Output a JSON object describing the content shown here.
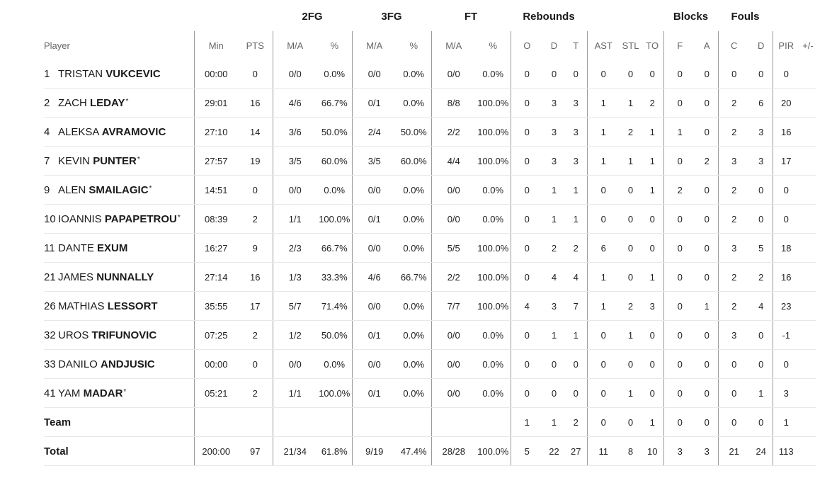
{
  "groups": {
    "two_fg": "2FG",
    "three_fg": "3FG",
    "ft": "FT",
    "rebounds": "Rebounds",
    "blocks": "Blocks",
    "fouls": "Fouls"
  },
  "columns": {
    "player": "Player",
    "min": "Min",
    "pts": "PTS",
    "fg2_ma": "M/A",
    "fg2_pct": "%",
    "fg3_ma": "M/A",
    "fg3_pct": "%",
    "ft_ma": "M/A",
    "ft_pct": "%",
    "reb_o": "O",
    "reb_d": "D",
    "reb_t": "T",
    "ast": "AST",
    "stl": "STL",
    "to": "TO",
    "blk_f": "F",
    "blk_a": "A",
    "foul_c": "C",
    "foul_d": "D",
    "pir": "PIR",
    "plusminus": "+/-"
  },
  "players": [
    {
      "num": "1",
      "first": "TRISTAN",
      "last": "VUKCEVIC",
      "star": "",
      "min": "00:00",
      "pts": "0",
      "fg2_ma": "0/0",
      "fg2_pct": "0.0%",
      "fg3_ma": "0/0",
      "fg3_pct": "0.0%",
      "ft_ma": "0/0",
      "ft_pct": "0.0%",
      "reb_o": "0",
      "reb_d": "0",
      "reb_t": "0",
      "ast": "0",
      "stl": "0",
      "to": "0",
      "blk_f": "0",
      "blk_a": "0",
      "foul_c": "0",
      "foul_d": "0",
      "pir": "0",
      "plusminus": ""
    },
    {
      "num": "2",
      "first": "ZACH",
      "last": "LEDAY",
      "star": "*",
      "min": "29:01",
      "pts": "16",
      "fg2_ma": "4/6",
      "fg2_pct": "66.7%",
      "fg3_ma": "0/1",
      "fg3_pct": "0.0%",
      "ft_ma": "8/8",
      "ft_pct": "100.0%",
      "reb_o": "0",
      "reb_d": "3",
      "reb_t": "3",
      "ast": "1",
      "stl": "1",
      "to": "2",
      "blk_f": "0",
      "blk_a": "0",
      "foul_c": "2",
      "foul_d": "6",
      "pir": "20",
      "plusminus": ""
    },
    {
      "num": "4",
      "first": "ALEKSA",
      "last": "AVRAMOVIC",
      "star": "",
      "min": "27:10",
      "pts": "14",
      "fg2_ma": "3/6",
      "fg2_pct": "50.0%",
      "fg3_ma": "2/4",
      "fg3_pct": "50.0%",
      "ft_ma": "2/2",
      "ft_pct": "100.0%",
      "reb_o": "0",
      "reb_d": "3",
      "reb_t": "3",
      "ast": "1",
      "stl": "2",
      "to": "1",
      "blk_f": "1",
      "blk_a": "0",
      "foul_c": "2",
      "foul_d": "3",
      "pir": "16",
      "plusminus": ""
    },
    {
      "num": "7",
      "first": "KEVIN",
      "last": "PUNTER",
      "star": "*",
      "min": "27:57",
      "pts": "19",
      "fg2_ma": "3/5",
      "fg2_pct": "60.0%",
      "fg3_ma": "3/5",
      "fg3_pct": "60.0%",
      "ft_ma": "4/4",
      "ft_pct": "100.0%",
      "reb_o": "0",
      "reb_d": "3",
      "reb_t": "3",
      "ast": "1",
      "stl": "1",
      "to": "1",
      "blk_f": "0",
      "blk_a": "2",
      "foul_c": "3",
      "foul_d": "3",
      "pir": "17",
      "plusminus": ""
    },
    {
      "num": "9",
      "first": "ALEN",
      "last": "SMAILAGIC",
      "star": "*",
      "min": "14:51",
      "pts": "0",
      "fg2_ma": "0/0",
      "fg2_pct": "0.0%",
      "fg3_ma": "0/0",
      "fg3_pct": "0.0%",
      "ft_ma": "0/0",
      "ft_pct": "0.0%",
      "reb_o": "0",
      "reb_d": "1",
      "reb_t": "1",
      "ast": "0",
      "stl": "0",
      "to": "1",
      "blk_f": "2",
      "blk_a": "0",
      "foul_c": "2",
      "foul_d": "0",
      "pir": "0",
      "plusminus": ""
    },
    {
      "num": "10",
      "first": "IOANNIS",
      "last": "PAPAPETROU",
      "star": "*",
      "min": "08:39",
      "pts": "2",
      "fg2_ma": "1/1",
      "fg2_pct": "100.0%",
      "fg3_ma": "0/1",
      "fg3_pct": "0.0%",
      "ft_ma": "0/0",
      "ft_pct": "0.0%",
      "reb_o": "0",
      "reb_d": "1",
      "reb_t": "1",
      "ast": "0",
      "stl": "0",
      "to": "0",
      "blk_f": "0",
      "blk_a": "0",
      "foul_c": "2",
      "foul_d": "0",
      "pir": "0",
      "plusminus": ""
    },
    {
      "num": "11",
      "first": "DANTE",
      "last": "EXUM",
      "star": "",
      "min": "16:27",
      "pts": "9",
      "fg2_ma": "2/3",
      "fg2_pct": "66.7%",
      "fg3_ma": "0/0",
      "fg3_pct": "0.0%",
      "ft_ma": "5/5",
      "ft_pct": "100.0%",
      "reb_o": "0",
      "reb_d": "2",
      "reb_t": "2",
      "ast": "6",
      "stl": "0",
      "to": "0",
      "blk_f": "0",
      "blk_a": "0",
      "foul_c": "3",
      "foul_d": "5",
      "pir": "18",
      "plusminus": ""
    },
    {
      "num": "21",
      "first": "JAMES",
      "last": "NUNNALLY",
      "star": "",
      "min": "27:14",
      "pts": "16",
      "fg2_ma": "1/3",
      "fg2_pct": "33.3%",
      "fg3_ma": "4/6",
      "fg3_pct": "66.7%",
      "ft_ma": "2/2",
      "ft_pct": "100.0%",
      "reb_o": "0",
      "reb_d": "4",
      "reb_t": "4",
      "ast": "1",
      "stl": "0",
      "to": "1",
      "blk_f": "0",
      "blk_a": "0",
      "foul_c": "2",
      "foul_d": "2",
      "pir": "16",
      "plusminus": ""
    },
    {
      "num": "26",
      "first": "MATHIAS",
      "last": "LESSORT",
      "star": "",
      "min": "35:55",
      "pts": "17",
      "fg2_ma": "5/7",
      "fg2_pct": "71.4%",
      "fg3_ma": "0/0",
      "fg3_pct": "0.0%",
      "ft_ma": "7/7",
      "ft_pct": "100.0%",
      "reb_o": "4",
      "reb_d": "3",
      "reb_t": "7",
      "ast": "1",
      "stl": "2",
      "to": "3",
      "blk_f": "0",
      "blk_a": "1",
      "foul_c": "2",
      "foul_d": "4",
      "pir": "23",
      "plusminus": ""
    },
    {
      "num": "32",
      "first": "UROS",
      "last": "TRIFUNOVIC",
      "star": "",
      "min": "07:25",
      "pts": "2",
      "fg2_ma": "1/2",
      "fg2_pct": "50.0%",
      "fg3_ma": "0/1",
      "fg3_pct": "0.0%",
      "ft_ma": "0/0",
      "ft_pct": "0.0%",
      "reb_o": "0",
      "reb_d": "1",
      "reb_t": "1",
      "ast": "0",
      "stl": "1",
      "to": "0",
      "blk_f": "0",
      "blk_a": "0",
      "foul_c": "3",
      "foul_d": "0",
      "pir": "-1",
      "plusminus": ""
    },
    {
      "num": "33",
      "first": "DANILO",
      "last": "ANDJUSIC",
      "star": "",
      "min": "00:00",
      "pts": "0",
      "fg2_ma": "0/0",
      "fg2_pct": "0.0%",
      "fg3_ma": "0/0",
      "fg3_pct": "0.0%",
      "ft_ma": "0/0",
      "ft_pct": "0.0%",
      "reb_o": "0",
      "reb_d": "0",
      "reb_t": "0",
      "ast": "0",
      "stl": "0",
      "to": "0",
      "blk_f": "0",
      "blk_a": "0",
      "foul_c": "0",
      "foul_d": "0",
      "pir": "0",
      "plusminus": ""
    },
    {
      "num": "41",
      "first": "YAM",
      "last": "MADAR",
      "star": "*",
      "min": "05:21",
      "pts": "2",
      "fg2_ma": "1/1",
      "fg2_pct": "100.0%",
      "fg3_ma": "0/1",
      "fg3_pct": "0.0%",
      "ft_ma": "0/0",
      "ft_pct": "0.0%",
      "reb_o": "0",
      "reb_d": "0",
      "reb_t": "0",
      "ast": "0",
      "stl": "1",
      "to": "0",
      "blk_f": "0",
      "blk_a": "0",
      "foul_c": "0",
      "foul_d": "1",
      "pir": "3",
      "plusminus": ""
    }
  ],
  "team": {
    "label": "Team",
    "min": "",
    "pts": "",
    "fg2_ma": "",
    "fg2_pct": "",
    "fg3_ma": "",
    "fg3_pct": "",
    "ft_ma": "",
    "ft_pct": "",
    "reb_o": "1",
    "reb_d": "1",
    "reb_t": "2",
    "ast": "0",
    "stl": "0",
    "to": "1",
    "blk_f": "0",
    "blk_a": "0",
    "foul_c": "0",
    "foul_d": "0",
    "pir": "1",
    "plusminus": ""
  },
  "total": {
    "label": "Total",
    "min": "200:00",
    "pts": "97",
    "fg2_ma": "21/34",
    "fg2_pct": "61.8%",
    "fg3_ma": "9/19",
    "fg3_pct": "47.4%",
    "ft_ma": "28/28",
    "ft_pct": "100.0%",
    "reb_o": "5",
    "reb_d": "22",
    "reb_t": "27",
    "ast": "11",
    "stl": "8",
    "to": "10",
    "blk_f": "3",
    "blk_a": "3",
    "foul_c": "21",
    "foul_d": "24",
    "pir": "113",
    "plusminus": ""
  }
}
